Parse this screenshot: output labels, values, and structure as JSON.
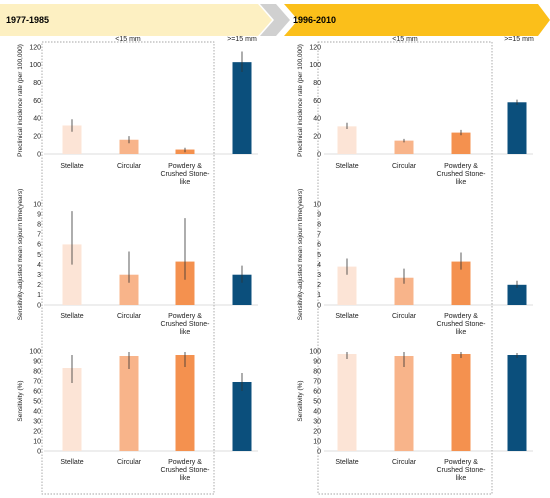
{
  "header": {
    "period_left": "1977-1985",
    "period_right": "1996-2010",
    "colors": {
      "left_banner": "#fdf0c2",
      "right_banner": "#fbbf1a",
      "chevron": "#d0d0d0"
    }
  },
  "group_labels": {
    "small": "<15 mm",
    "large": ">=15 mm"
  },
  "categories": [
    "Stellate",
    "Circular",
    "Powdery & Crushed Stone-like"
  ],
  "category_lines": [
    [
      "Stellate"
    ],
    [
      "Circular"
    ],
    [
      "Powdery &",
      "Crushed Stone-",
      "like"
    ]
  ],
  "colors": {
    "stellate": "#fce4d6",
    "circular": "#f8b48a",
    "powdery": "#f4914f",
    "large": "#0b4f7c"
  },
  "chart_data": [
    {
      "type": "bar",
      "period": "1977-1985",
      "ylabel": "Preclinical incidence rate (per 100,000)",
      "ylim": [
        0,
        120
      ],
      "yticks": [
        0,
        20,
        40,
        60,
        80,
        100,
        120
      ],
      "small": {
        "values": [
          32,
          16,
          5
        ],
        "err_low": [
          25,
          12,
          2
        ],
        "err_high": [
          39,
          20,
          7
        ]
      },
      "large": {
        "value": 103,
        "err_low": 92,
        "err_high": 115
      }
    },
    {
      "type": "bar",
      "period": "1996-2010",
      "ylabel": "Preclinical incidence rate (per 100,000)",
      "ylim": [
        0,
        120
      ],
      "yticks": [
        0,
        20,
        40,
        60,
        80,
        100,
        120
      ],
      "small": {
        "values": [
          31,
          15,
          24
        ],
        "err_low": [
          28,
          13,
          21
        ],
        "err_high": [
          35,
          17,
          27
        ]
      },
      "large": {
        "value": 58,
        "err_low": 55,
        "err_high": 61
      }
    },
    {
      "type": "bar",
      "period": "1977-1985",
      "ylabel": "Sensitivity-adjusted mean sojourn time(years)",
      "ylim": [
        0,
        10
      ],
      "yticks": [
        0,
        1,
        2,
        3,
        4,
        5,
        6,
        7,
        8,
        9,
        10
      ],
      "small": {
        "values": [
          6.0,
          3.0,
          4.3
        ],
        "err_low": [
          4.0,
          2.2,
          2.5
        ],
        "err_high": [
          9.3,
          5.3,
          8.6
        ]
      },
      "large": {
        "value": 3.0,
        "err_low": 2.2,
        "err_high": 3.9
      }
    },
    {
      "type": "bar",
      "period": "1996-2010",
      "ylabel": "Sensitivity-adjusted mean sojourn time(years)",
      "ylim": [
        0,
        10
      ],
      "yticks": [
        0,
        1,
        2,
        3,
        4,
        5,
        6,
        7,
        8,
        9,
        10
      ],
      "small": {
        "values": [
          3.8,
          2.7,
          4.3
        ],
        "err_low": [
          3.0,
          2.1,
          3.5
        ],
        "err_high": [
          4.6,
          3.6,
          5.2
        ]
      },
      "large": {
        "value": 2.0,
        "err_low": 1.7,
        "err_high": 2.4
      }
    },
    {
      "type": "bar",
      "period": "1977-1985",
      "ylabel": "Sensitivity (%)",
      "ylim": [
        0,
        100
      ],
      "yticks": [
        0,
        10,
        20,
        30,
        40,
        50,
        60,
        70,
        80,
        90,
        100
      ],
      "small": {
        "values": [
          83,
          95,
          96
        ],
        "err_low": [
          68,
          82,
          84
        ],
        "err_high": [
          96,
          99,
          99
        ]
      },
      "large": {
        "value": 69,
        "err_low": 60,
        "err_high": 78
      }
    },
    {
      "type": "bar",
      "period": "1996-2010",
      "ylabel": "Sensitivity (%)",
      "ylim": [
        0,
        100
      ],
      "yticks": [
        0,
        10,
        20,
        30,
        40,
        50,
        60,
        70,
        80,
        90,
        100
      ],
      "small": {
        "values": [
          97,
          95,
          97
        ],
        "err_low": [
          92,
          84,
          93
        ],
        "err_high": [
          99,
          99,
          99
        ]
      },
      "large": {
        "value": 96,
        "err_low": 93,
        "err_high": 98
      }
    }
  ]
}
